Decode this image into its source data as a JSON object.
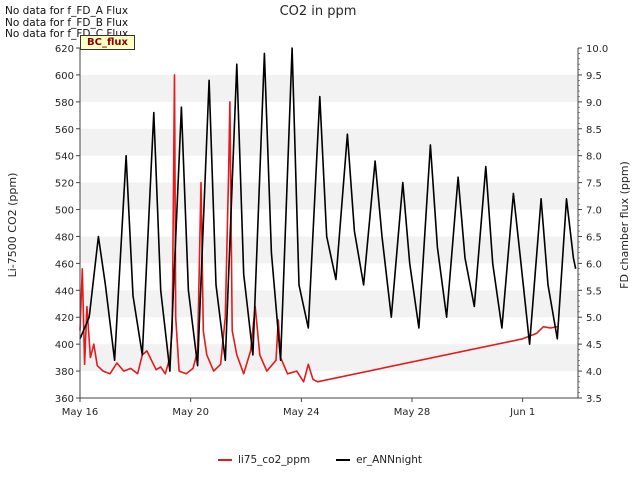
{
  "chart_data": {
    "type": "line",
    "title": "CO2 in ppm",
    "ylabel": "Li-7500 CO2 (ppm)",
    "y2label": "FD chamber flux (ppm)",
    "ylim": [
      360,
      620
    ],
    "y2lim": [
      3.5,
      10.0
    ],
    "xlim_days": [
      "May 16",
      "Jun 3"
    ],
    "x_ticks": [
      "May 16",
      "May 20",
      "May 24",
      "May 28",
      "Jun 1"
    ],
    "y_ticks": [
      "360",
      "380",
      "400",
      "420",
      "440",
      "460",
      "480",
      "500",
      "520",
      "540",
      "560",
      "580",
      "600",
      "620"
    ],
    "y2_ticks": [
      "3.5",
      "4.0",
      "4.5",
      "5.0",
      "5.5",
      "6.0",
      "6.5",
      "7.0",
      "7.5",
      "8.0",
      "8.5",
      "9.0",
      "9.5",
      "10.0"
    ],
    "grid_bands": true,
    "legend_position": "bottom-center",
    "series": [
      {
        "name": "li75_co2_ppm",
        "color": "#e41a1c",
        "axis": "left",
        "points": [
          [
            "May 16 00:00",
            410
          ],
          [
            "May 16 02:00",
            456
          ],
          [
            "May 16 04:00",
            385
          ],
          [
            "May 16 06:00",
            428
          ],
          [
            "May 16 09:00",
            390
          ],
          [
            "May 16 12:00",
            400
          ],
          [
            "May 16 15:00",
            384
          ],
          [
            "May 16 20:00",
            380
          ],
          [
            "May 17 02:00",
            378
          ],
          [
            "May 17 08:00",
            386
          ],
          [
            "May 17 14:00",
            380
          ],
          [
            "May 17 20:00",
            382
          ],
          [
            "May 18 02:00",
            378
          ],
          [
            "May 18 06:00",
            392
          ],
          [
            "May 18 10:00",
            395
          ],
          [
            "May 18 14:00",
            388
          ],
          [
            "May 18 18:00",
            381
          ],
          [
            "May 18 22:00",
            383
          ],
          [
            "May 19 02:00",
            378
          ],
          [
            "May 19 06:00",
            390
          ],
          [
            "May 19 08:00",
            410
          ],
          [
            "May 19 10:00",
            600
          ],
          [
            "May 19 11:00",
            420
          ],
          [
            "May 19 14:00",
            380
          ],
          [
            "May 19 20:00",
            378
          ],
          [
            "May 20 02:00",
            382
          ],
          [
            "May 20 06:00",
            395
          ],
          [
            "May 20 09:00",
            520
          ],
          [
            "May 20 11:00",
            410
          ],
          [
            "May 20 14:00",
            392
          ],
          [
            "May 20 20:00",
            380
          ],
          [
            "May 21 02:00",
            385
          ],
          [
            "May 21 06:00",
            420
          ],
          [
            "May 21 09:00",
            530
          ],
          [
            "May 21 10:00",
            580
          ],
          [
            "May 21 12:00",
            410
          ],
          [
            "May 21 16:00",
            392
          ],
          [
            "May 21 22:00",
            378
          ],
          [
            "May 22 04:00",
            395
          ],
          [
            "May 22 08:00",
            428
          ],
          [
            "May 22 12:00",
            392
          ],
          [
            "May 22 18:00",
            380
          ],
          [
            "May 23 02:00",
            388
          ],
          [
            "May 23 04:00",
            418
          ],
          [
            "May 23 06:00",
            390
          ],
          [
            "May 23 12:00",
            378
          ],
          [
            "May 23 20:00",
            380
          ],
          [
            "May 24 02:00",
            372
          ],
          [
            "May 24 06:00",
            385
          ],
          [
            "May 24 10:00",
            374
          ],
          [
            "May 24 14:00",
            372
          ],
          [
            "Jun 1 00:00",
            404
          ],
          [
            "Jun 1 12:00",
            408
          ],
          [
            "Jun 1 18:00",
            413
          ],
          [
            "Jun 2 00:00",
            412
          ],
          [
            "Jun 2 06:00",
            413
          ]
        ]
      },
      {
        "name": "er_ANNnight",
        "color": "#000000",
        "axis": "right",
        "points": [
          [
            "May 16 00:00",
            4.6
          ],
          [
            "May 16 08:00",
            5.0
          ],
          [
            "May 16 16:00",
            6.5
          ],
          [
            "May 16 22:00",
            5.6
          ],
          [
            "May 17 06:00",
            4.2
          ],
          [
            "May 17 16:00",
            8.0
          ],
          [
            "May 17 22:00",
            5.4
          ],
          [
            "May 18 06:00",
            4.3
          ],
          [
            "May 18 16:00",
            8.8
          ],
          [
            "May 18 22:00",
            5.5
          ],
          [
            "May 19 06:00",
            4.0
          ],
          [
            "May 19 16:00",
            8.9
          ],
          [
            "May 19 22:00",
            5.5
          ],
          [
            "May 20 06:00",
            4.1
          ],
          [
            "May 20 16:00",
            9.4
          ],
          [
            "May 20 22:00",
            5.6
          ],
          [
            "May 21 06:00",
            4.2
          ],
          [
            "May 21 16:00",
            9.7
          ],
          [
            "May 21 22:00",
            5.8
          ],
          [
            "May 22 06:00",
            4.3
          ],
          [
            "May 22 16:00",
            9.9
          ],
          [
            "May 22 22:00",
            6.2
          ],
          [
            "May 23 06:00",
            4.2
          ],
          [
            "May 23 16:00",
            10.0
          ],
          [
            "May 23 22:00",
            5.6
          ],
          [
            "May 24 06:00",
            4.8
          ],
          [
            "May 24 16:00",
            9.1
          ],
          [
            "May 24 22:00",
            6.5
          ],
          [
            "May 25 06:00",
            5.7
          ],
          [
            "May 25 16:00",
            8.4
          ],
          [
            "May 25 22:00",
            6.6
          ],
          [
            "May 26 06:00",
            5.6
          ],
          [
            "May 26 16:00",
            7.9
          ],
          [
            "May 26 22:00",
            6.5
          ],
          [
            "May 27 06:00",
            5.0
          ],
          [
            "May 27 16:00",
            7.5
          ],
          [
            "May 27 22:00",
            6.0
          ],
          [
            "May 28 06:00",
            4.8
          ],
          [
            "May 28 16:00",
            8.2
          ],
          [
            "May 28 22:00",
            6.3
          ],
          [
            "May 29 06:00",
            5.0
          ],
          [
            "May 29 16:00",
            7.6
          ],
          [
            "May 29 22:00",
            6.1
          ],
          [
            "May 30 06:00",
            5.2
          ],
          [
            "May 30 16:00",
            7.8
          ],
          [
            "May 30 22:00",
            6.0
          ],
          [
            "May 31 06:00",
            4.8
          ],
          [
            "May 31 16:00",
            7.3
          ],
          [
            "May 31 22:00",
            6.1
          ],
          [
            "Jun 1 06:00",
            4.5
          ],
          [
            "Jun 1 16:00",
            7.2
          ],
          [
            "Jun 1 22:00",
            5.6
          ],
          [
            "Jun 2 06:00",
            4.6
          ],
          [
            "Jun 2 14:00",
            7.2
          ],
          [
            "Jun 2 20:00",
            6.1
          ],
          [
            "Jun 2 22:00",
            5.9
          ]
        ]
      }
    ]
  },
  "notes": [
    "No data for f_FD_A Flux",
    "No data for f_FD_B Flux",
    "No data for f_FD_C Flux"
  ],
  "badge": "BC_flux"
}
